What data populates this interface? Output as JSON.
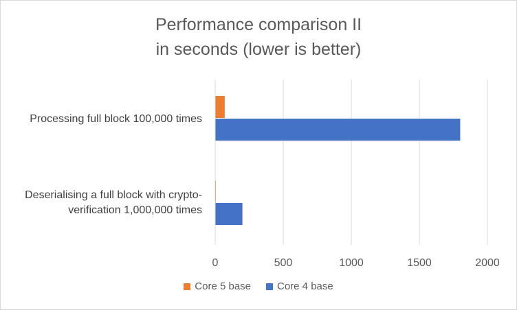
{
  "chart_data": {
    "type": "bar",
    "orientation": "horizontal",
    "title_lines": [
      "Performance comparison II",
      "in seconds (lower is better)"
    ],
    "categories": [
      "Processing full block 100,000 times",
      "Deserialising a full block with crypto-verification 1,000,000 times"
    ],
    "category_label_lines": [
      [
        "Processing full block 100,000 times"
      ],
      [
        "Deserialising a full block with crypto-",
        "verification 1,000,000 times"
      ]
    ],
    "series": [
      {
        "name": "Core 5 base",
        "values": [
          70,
          5
        ],
        "color": "#ED7D31"
      },
      {
        "name": "Core 4 base",
        "values": [
          1800,
          200
        ],
        "color": "#4472C4"
      }
    ],
    "xlim": [
      0,
      2000
    ],
    "xticks": [
      "0",
      "500",
      "1000",
      "1500",
      "2000"
    ],
    "tick_values": [
      0,
      500,
      1000,
      1500,
      2000
    ],
    "grid": true,
    "legend": "bottom-center",
    "xlabel": "",
    "ylabel": ""
  }
}
